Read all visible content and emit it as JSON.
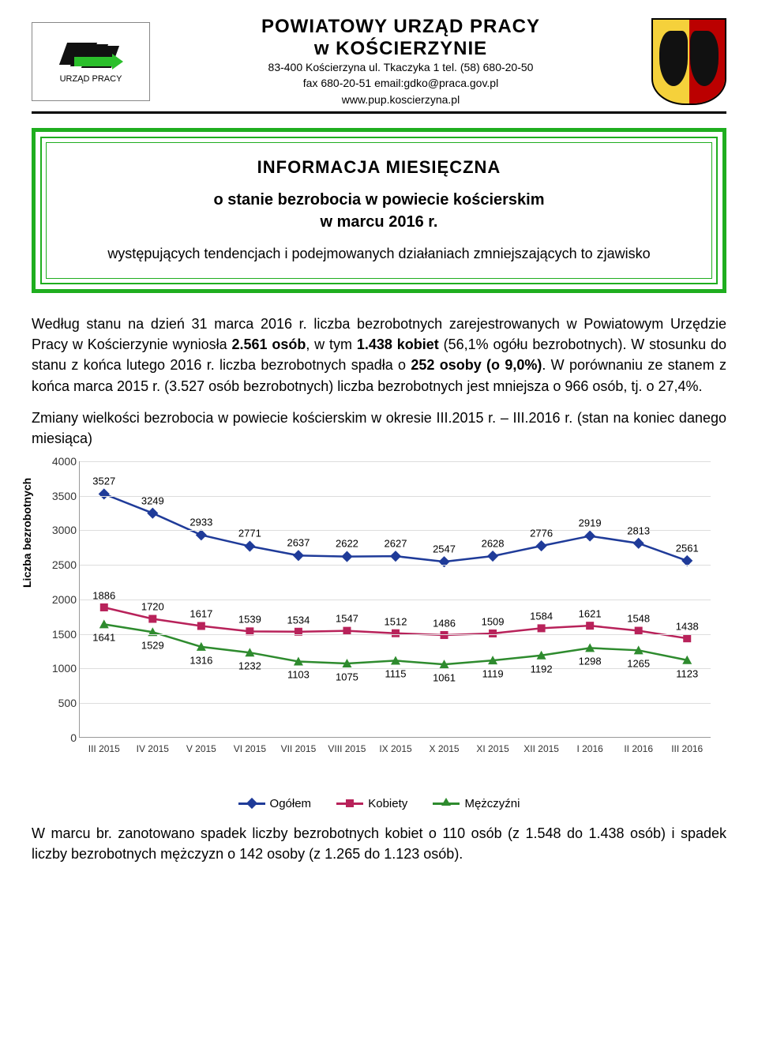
{
  "header": {
    "logo_caption": "URZĄD PRACY",
    "title_line1": "POWIATOWY  URZĄD  PRACY",
    "title_line2": "w  KOŚCIERZYNIE",
    "address": "83-400 Kościerzyna ul. Tkaczyka 1 tel. (58) 680-20-50",
    "fax": "fax 680-20-51  email:gdko@praca.gov.pl",
    "www": "www.pup.koscierzyna.pl"
  },
  "frame": {
    "title": "INFORMACJA  MIESIĘCZNA",
    "sub1": "o stanie bezrobocia w powiecie kościerskim",
    "sub2": "w marcu 2016 r.",
    "desc": "występujących tendencjach i podejmowanych działaniach zmniejszających to zjawisko"
  },
  "para1": {
    "t1": "Według stanu na dzień 31 marca 2016 r. liczba bezrobotnych zarejestrowanych w Powiatowym Urzędzie Pracy w Kościerzynie wyniosła ",
    "b1": "2.561 osób",
    "t2": ", w tym ",
    "b2": "1.438 kobiet",
    "t3": " (56,1% ogółu bezrobotnych). W stosunku do stanu z końca lutego 2016 r. liczba bezrobotnych spadła o ",
    "b3": "252 osoby (o 9,0%)",
    "t4": ". W porównaniu ze stanem z końca marca 2015 r. (3.527 osób bezrobotnych) liczba bezrobotnych jest mniejsza o 966 osób, tj. o 27,4%."
  },
  "chart_intro": "Zmiany wielkości bezrobocia w powiecie kościerskim w okresie III.2015 r. – III.2016 r. (stan na koniec danego miesiąca)",
  "chart": {
    "type": "line",
    "ylabel": "Liczba bezrobotnych",
    "ylim": [
      0,
      4000
    ],
    "ytick_step": 500,
    "categories": [
      "III 2015",
      "IV 2015",
      "V 2015",
      "VI 2015",
      "VII 2015",
      "VIII 2015",
      "IX 2015",
      "X 2015",
      "XI 2015",
      "XII 2015",
      "I 2016",
      "II 2016",
      "III 2016"
    ],
    "series": [
      {
        "name": "Ogółem",
        "color": "#1f3b99",
        "marker": "diamond",
        "values": [
          3527,
          3249,
          2933,
          2771,
          2637,
          2622,
          2627,
          2547,
          2628,
          2776,
          2919,
          2813,
          2561
        ]
      },
      {
        "name": "Kobiety",
        "color": "#b8225a",
        "marker": "square",
        "values": [
          1886,
          1720,
          1617,
          1539,
          1534,
          1547,
          1512,
          1486,
          1509,
          1584,
          1621,
          1548,
          1438
        ]
      },
      {
        "name": "Mężczyźni",
        "color": "#2e8b2e",
        "marker": "triangle",
        "values": [
          1641,
          1529,
          1316,
          1232,
          1103,
          1075,
          1115,
          1061,
          1119,
          1192,
          1298,
          1265,
          1123
        ]
      }
    ],
    "label_fontsize": 13,
    "tick_fontsize": 13,
    "line_width": 2.5,
    "marker_size": 8,
    "background_color": "#ffffff"
  },
  "legend": {
    "s0": "Ogółem",
    "s1": "Kobiety",
    "s2": "Mężczyźni"
  },
  "footer": "W marcu br. zanotowano spadek liczby bezrobotnych kobiet o 110 osób (z 1.548 do 1.438 osób) i spadek liczby bezrobotnych mężczyzn o 142 osoby (z 1.265 do 1.123 osób)."
}
